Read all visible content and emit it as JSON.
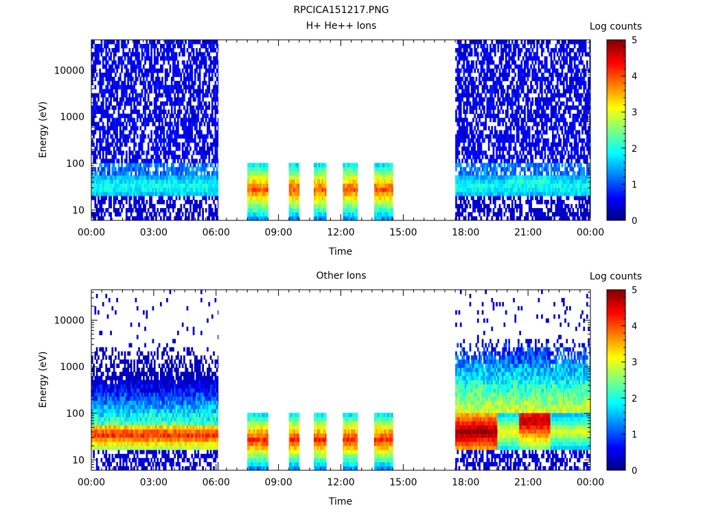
{
  "figure_title": "RPCICA151217.PNG",
  "colorbar": {
    "label": "Log counts",
    "ticks": [
      "0",
      "1",
      "2",
      "3",
      "4",
      "5"
    ],
    "colormap": [
      "#00007f",
      "#0000ff",
      "#007fff",
      "#00ffff",
      "#7fff7f",
      "#ffff00",
      "#ff7f00",
      "#ff0000",
      "#7f0000"
    ]
  },
  "chart_data": [
    {
      "type": "heatmap",
      "title": "H+ He++ Ions",
      "xlabel": "Time",
      "ylabel": "Energy (eV)",
      "x_ticks": [
        "00:00",
        "03:00",
        "06:00",
        "09:00",
        "12:00",
        "15:00",
        "18:00",
        "21:00",
        "00:00"
      ],
      "xlim_hours": [
        0,
        24
      ],
      "y_ticks": [
        "10",
        "100",
        "1000",
        "10000"
      ],
      "ylim": [
        6,
        45000
      ],
      "y_scale": "log",
      "clim": [
        0,
        5
      ],
      "data_intervals_hours": [
        [
          0,
          6.1
        ],
        [
          7.5,
          8.5
        ],
        [
          9.5,
          10.0
        ],
        [
          10.7,
          11.3
        ],
        [
          12.1,
          12.8
        ],
        [
          13.6,
          14.5
        ],
        [
          17.5,
          24
        ]
      ],
      "summary": [
        {
          "hours": [
            0,
            6.1
          ],
          "peak_energy_eV": 32,
          "peak_log_counts": 2.0,
          "background_log_counts": 0.3
        },
        {
          "hours": [
            7.5,
            14.5
          ],
          "peak_energy_eV": 28,
          "peak_log_counts": 4.0,
          "energy_range_eV": [
            7,
            100
          ]
        },
        {
          "hours": [
            17.5,
            24
          ],
          "peak_energy_eV": 35,
          "peak_log_counts": 2.1,
          "background_log_counts": 0.3
        }
      ]
    },
    {
      "type": "heatmap",
      "title": "Other Ions",
      "xlabel": "Time",
      "ylabel": "Energy (eV)",
      "x_ticks": [
        "00:00",
        "03:00",
        "06:00",
        "09:00",
        "12:00",
        "15:00",
        "18:00",
        "21:00",
        "00:00"
      ],
      "xlim_hours": [
        0,
        24
      ],
      "y_ticks": [
        "10",
        "100",
        "1000",
        "10000"
      ],
      "ylim": [
        6,
        45000
      ],
      "y_scale": "log",
      "clim": [
        0,
        5
      ],
      "data_intervals_hours": [
        [
          0,
          6.1
        ],
        [
          7.5,
          8.5
        ],
        [
          9.5,
          10.0
        ],
        [
          10.7,
          11.3
        ],
        [
          12.1,
          12.8
        ],
        [
          13.6,
          14.5
        ],
        [
          17.5,
          24
        ]
      ],
      "summary": [
        {
          "hours": [
            0,
            6.1
          ],
          "peak_energy_eV": 35,
          "peak_log_counts": 4.2
        },
        {
          "hours": [
            7.5,
            14.5
          ],
          "peak_energy_eV": 28,
          "peak_log_counts": 4.2,
          "energy_range_eV": [
            7,
            100
          ]
        },
        {
          "hours": [
            17.5,
            19.5
          ],
          "peak_energy_eV": 40,
          "peak_log_counts": 5.0
        },
        {
          "hours": [
            20.5,
            22.0
          ],
          "peak_energy_eV": 70,
          "peak_log_counts": 4.8
        }
      ]
    }
  ]
}
